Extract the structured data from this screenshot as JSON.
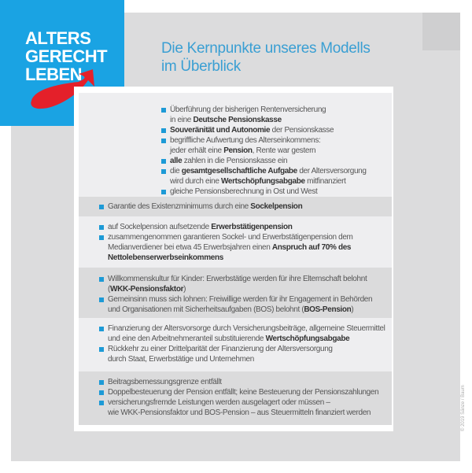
{
  "logo": {
    "lines": [
      "ALTERS",
      "GERECHT",
      "LEBEN"
    ],
    "colors": {
      "background": "#1aa3e3",
      "arrow": "#e4202a"
    }
  },
  "title": {
    "line1": "Die Kernpunkte unseres Modells",
    "line2": "im Überblick",
    "color": "#3a9fd3"
  },
  "sections": [
    {
      "items": [
        [
          [
            [
              "Überführung der bisherigen Rentenversicherung",
              0
            ]
          ],
          [
            [
              "in eine ",
              0
            ],
            [
              "Deutsche Pensionskasse",
              1
            ]
          ]
        ],
        [
          [
            [
              "Souveränität und Autonomie",
              1
            ],
            [
              " der Pensionskasse",
              0
            ]
          ]
        ],
        [
          [
            [
              "begriffliche Aufwertung des Alterseinkommens:",
              0
            ]
          ],
          [
            [
              "jeder erhält eine ",
              0
            ],
            [
              "Pension",
              1
            ],
            [
              ", Rente war gestern",
              0
            ]
          ]
        ],
        [
          [
            [
              "alle",
              1
            ],
            [
              " zahlen in die Pensionskasse ein",
              0
            ]
          ]
        ],
        [
          [
            [
              "die ",
              0
            ],
            [
              "gesamtgesellschaftliche Aufgabe",
              1
            ],
            [
              " der Altersversorgung",
              0
            ]
          ],
          [
            [
              "wird durch eine ",
              0
            ],
            [
              "Wertschöpfungsabgabe",
              1
            ],
            [
              " mitfinanziert",
              0
            ]
          ]
        ],
        [
          [
            [
              "gleiche Pensionsberechnung in Ost und West",
              0
            ]
          ]
        ]
      ]
    },
    {
      "items": [
        [
          [
            [
              "Garantie des Existenzminimums durch eine ",
              0
            ],
            [
              "Sockelpension",
              1
            ]
          ]
        ]
      ]
    },
    {
      "items": [
        [
          [
            [
              "auf Sockelpension aufsetzende ",
              0
            ],
            [
              "Erwerbstätigenpension",
              1
            ]
          ]
        ],
        [
          [
            [
              "zusammengenommen garantieren Sockel- und Erwerbstätigenpension dem",
              0
            ]
          ],
          [
            [
              "Medianverdiener bei etwa 45 Erwerbsjahren einen ",
              0
            ],
            [
              "Anspruch auf 70% des",
              1
            ]
          ],
          [
            [
              "Nettolebenserwerbseinkommens",
              1
            ]
          ]
        ]
      ]
    },
    {
      "items": [
        [
          [
            [
              "Willkommenskultur für Kinder: Erwerbstätige werden für ihre Elternschaft belohnt",
              0
            ]
          ],
          [
            [
              "(",
              0
            ],
            [
              "WKK-Pensionsfaktor",
              1
            ],
            [
              ")",
              0
            ]
          ]
        ],
        [
          [
            [
              "Gemeinsinn muss sich lohnen: Freiwillige werden für ihr Engagement in Behörden",
              0
            ]
          ],
          [
            [
              "und Organisationen mit Sicherheitsaufgaben (BOS) belohnt (",
              0
            ],
            [
              "BOS-Pension",
              1
            ],
            [
              ")",
              0
            ]
          ]
        ]
      ]
    },
    {
      "items": [
        [
          [
            [
              "Finanzierung der Altersvorsorge durch Versicherungsbeiträge, allgemeine Steuermittel",
              0
            ]
          ],
          [
            [
              "und eine den Arbeitnehmeranteil substituierende ",
              0
            ],
            [
              "Wertschöpfungsabgabe",
              1
            ]
          ]
        ],
        [
          [
            [
              "Rückkehr zu einer Drittelparität der Finanzierung der Altersversorgung",
              0
            ]
          ],
          [
            [
              "durch Staat, Erwerbstätige und Unternehmen",
              0
            ]
          ]
        ]
      ]
    },
    {
      "items": [
        [
          [
            [
              "Beitragsbemessungsgrenze entfällt",
              0
            ]
          ]
        ],
        [
          [
            [
              "Doppelbesteuerung der Pension entfällt; keine Besteuerung der Pensionszahlungen",
              0
            ]
          ]
        ],
        [
          [
            [
              "versicherungsfremde Leistungen werden ausgelagert oder müssen –",
              0
            ]
          ],
          [
            [
              "wie WKK-Pensionsfaktor und BOS-Pension – aus Steuermitteln finanziert werden",
              0
            ]
          ]
        ]
      ]
    }
  ],
  "copyright": "© 2019 Sänze / Baum",
  "bullet_color": "#1d9ad6"
}
